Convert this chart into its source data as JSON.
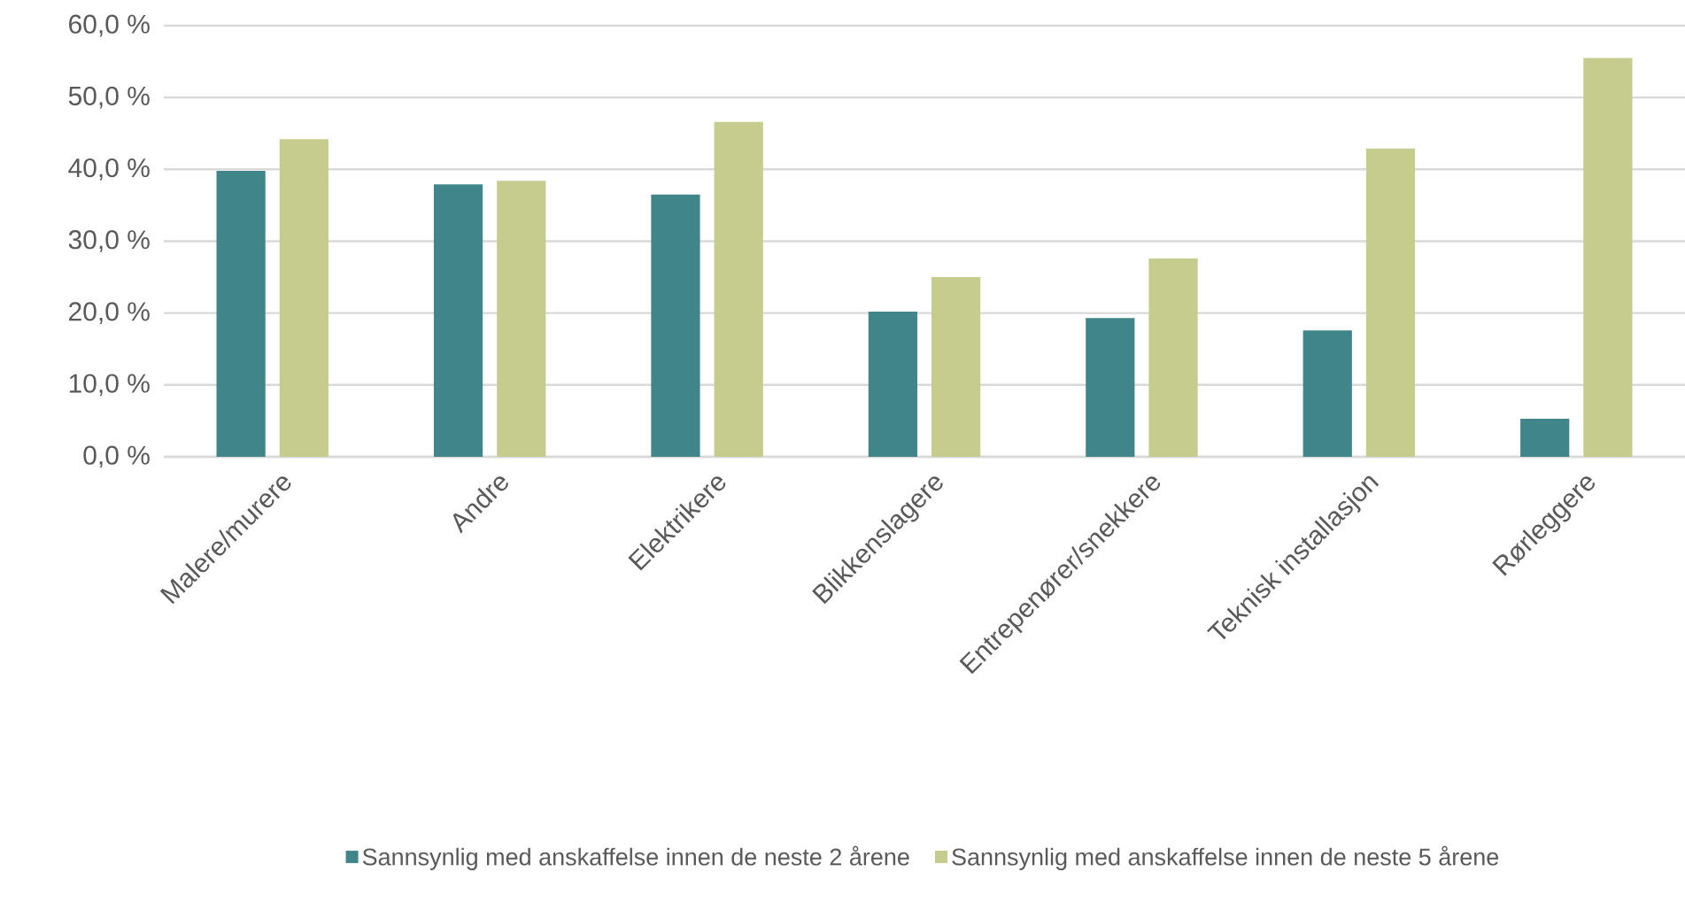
{
  "chart_data": {
    "type": "bar",
    "categories": [
      "Malere/murere",
      "Andre",
      "Elektrikere",
      "Blikkenslagere",
      "Entrepenører/snekkere",
      "Teknisk installasjon",
      "Rørleggere"
    ],
    "series": [
      {
        "name": "Sannsynlig med anskaffelse innen de neste 2 årene",
        "color": "#3f8589",
        "values": [
          39.8,
          37.9,
          36.5,
          20.2,
          19.3,
          17.6,
          5.3
        ]
      },
      {
        "name": "Sannsynlig med anskaffelse innen de neste 5 årene",
        "color": "#c6cc8d",
        "values": [
          44.2,
          38.4,
          46.6,
          25.0,
          27.6,
          42.9,
          55.5
        ]
      }
    ],
    "ylim": [
      0,
      60
    ],
    "yticks": [
      {
        "value": 0,
        "label": "0,0 %"
      },
      {
        "value": 10,
        "label": "10,0 %"
      },
      {
        "value": 20,
        "label": "20,0 %"
      },
      {
        "value": 30,
        "label": "30,0 %"
      },
      {
        "value": 40,
        "label": "40,0 %"
      },
      {
        "value": 50,
        "label": "50,0 %"
      },
      {
        "value": 60,
        "label": "60,0 %"
      }
    ],
    "grid": "y",
    "legend": "bottom"
  }
}
